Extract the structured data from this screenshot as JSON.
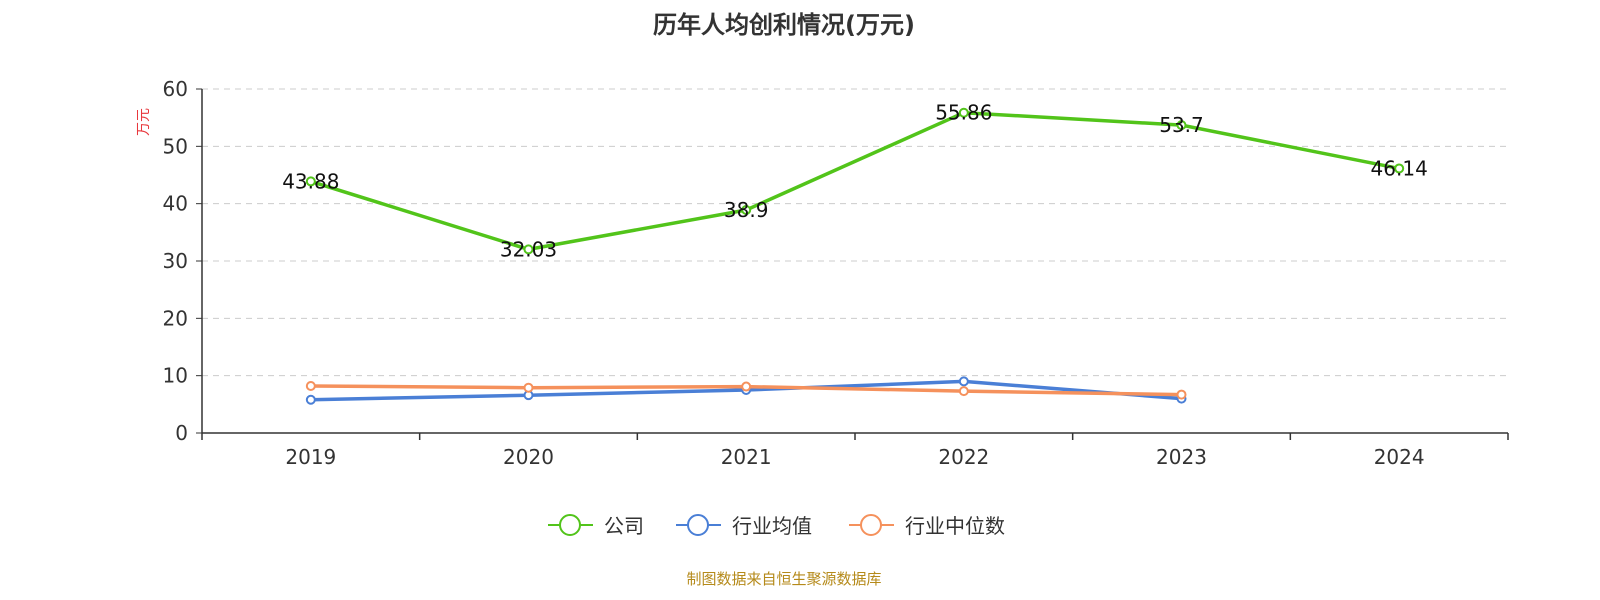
{
  "chart_data": {
    "type": "line",
    "title": "历年人均创利情况(万元)",
    "ylabel": "万元",
    "xlabel": "",
    "ylim": [
      0,
      60
    ],
    "yticks": [
      0,
      10,
      20,
      30,
      40,
      50,
      60
    ],
    "grid": "horizontal-dashed",
    "legend_position": "bottom",
    "categories": [
      "2019",
      "2020",
      "2021",
      "2022",
      "2023",
      "2024"
    ],
    "series": [
      {
        "name": "公司",
        "color": "#52c41a",
        "values": [
          43.88,
          32.03,
          38.9,
          55.86,
          53.7,
          46.14
        ],
        "labels": [
          "43.88",
          "32.03",
          "38.9",
          "55.86",
          "53.7",
          "46.14"
        ]
      },
      {
        "name": "行业均值",
        "color": "#4a7fd6",
        "values": [
          5.8,
          6.6,
          7.5,
          9.0,
          6.0,
          null
        ]
      },
      {
        "name": "行业中位数",
        "color": "#f5915c",
        "values": [
          8.2,
          7.9,
          8.1,
          7.3,
          6.7,
          null
        ]
      }
    ]
  },
  "source_note": "制图数据来自恒生聚源数据库"
}
